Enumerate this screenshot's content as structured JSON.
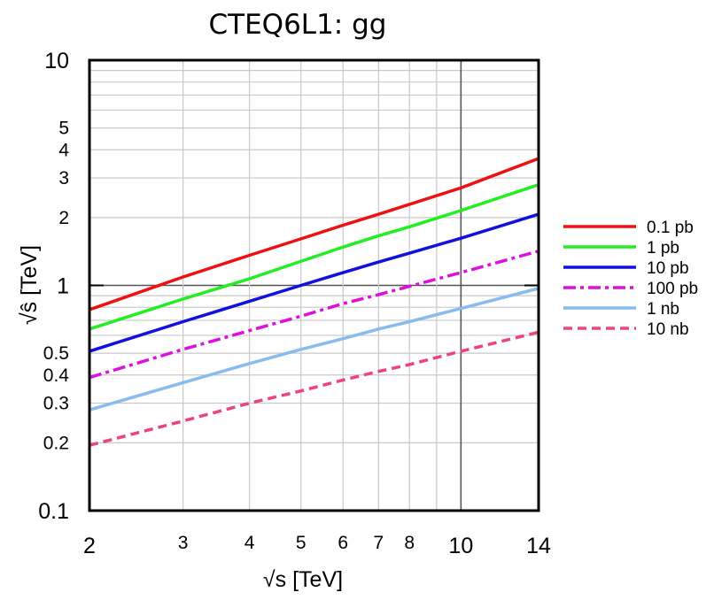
{
  "chart_data": {
    "type": "line",
    "title": "CTEQ6L1: gg",
    "xlabel": "√s  [TeV]",
    "ylabel": "√ŝ [TeV]",
    "x_scale": "log",
    "y_scale": "log",
    "xlim": [
      2,
      14
    ],
    "ylim": [
      0.1,
      10
    ],
    "grid": true,
    "legend_position": "right",
    "x_ticks": [
      {
        "value": 2,
        "label": "2",
        "major": true
      },
      {
        "value": 3,
        "label": "3",
        "major": false
      },
      {
        "value": 4,
        "label": "4",
        "major": false
      },
      {
        "value": 5,
        "label": "5",
        "major": false
      },
      {
        "value": 6,
        "label": "6",
        "major": false
      },
      {
        "value": 7,
        "label": "7",
        "major": false
      },
      {
        "value": 8,
        "label": "8",
        "major": false
      },
      {
        "value": 10,
        "label": "10",
        "major": true
      },
      {
        "value": 14,
        "label": "14",
        "major": true
      }
    ],
    "x_grid": [
      3,
      4,
      5,
      6,
      7,
      8,
      9,
      10
    ],
    "y_ticks": [
      {
        "value": 0.1,
        "label": "0.1",
        "major": true
      },
      {
        "value": 0.2,
        "label": "0.2",
        "major": false
      },
      {
        "value": 0.3,
        "label": "0.3",
        "major": false
      },
      {
        "value": 0.4,
        "label": "0.4",
        "major": false
      },
      {
        "value": 0.5,
        "label": "0.5",
        "major": false
      },
      {
        "value": 1,
        "label": "1",
        "major": true
      },
      {
        "value": 2,
        "label": "2",
        "major": false
      },
      {
        "value": 3,
        "label": "3",
        "major": false
      },
      {
        "value": 4,
        "label": "4",
        "major": false
      },
      {
        "value": 5,
        "label": "5",
        "major": false
      },
      {
        "value": 10,
        "label": "10",
        "major": true
      }
    ],
    "y_grid": [
      0.2,
      0.3,
      0.4,
      0.5,
      0.6,
      0.7,
      0.8,
      0.9,
      1,
      2,
      3,
      4,
      5,
      6,
      7,
      8,
      9
    ],
    "series": [
      {
        "name": "0.1 pb",
        "color": "#ee1111",
        "dash": "solid",
        "x": [
          2,
          3,
          4,
          5,
          6,
          7,
          8,
          10,
          14
        ],
        "y": [
          0.78,
          1.09,
          1.36,
          1.61,
          1.85,
          2.07,
          2.29,
          2.71,
          3.66
        ]
      },
      {
        "name": "1 pb",
        "color": "#22ee22",
        "dash": "solid",
        "x": [
          2,
          3,
          4,
          5,
          6,
          7,
          8,
          10,
          14
        ],
        "y": [
          0.64,
          0.87,
          1.07,
          1.28,
          1.48,
          1.66,
          1.82,
          2.15,
          2.8
        ]
      },
      {
        "name": "10 pb",
        "color": "#1111dd",
        "dash": "solid",
        "x": [
          2,
          3,
          4,
          5,
          6,
          7,
          8,
          10,
          14
        ],
        "y": [
          0.51,
          0.69,
          0.85,
          1.0,
          1.14,
          1.27,
          1.39,
          1.62,
          2.07
        ]
      },
      {
        "name": "100 pb",
        "color": "#dd11dd",
        "dash": "dashdot",
        "x": [
          2,
          3,
          4,
          5,
          6,
          7,
          8,
          10,
          14
        ],
        "y": [
          0.39,
          0.52,
          0.63,
          0.73,
          0.83,
          0.91,
          0.99,
          1.14,
          1.42
        ]
      },
      {
        "name": "1 nb",
        "color": "#88bbee",
        "dash": "solid",
        "x": [
          2,
          3,
          4,
          5,
          6,
          7,
          8,
          10,
          14
        ],
        "y": [
          0.28,
          0.37,
          0.45,
          0.52,
          0.58,
          0.64,
          0.69,
          0.79,
          0.97
        ]
      },
      {
        "name": "10 nb",
        "color": "#ee4477",
        "dash": "dashed",
        "x": [
          2,
          3,
          4,
          5,
          6,
          7,
          8,
          10,
          14
        ],
        "y": [
          0.195,
          0.25,
          0.3,
          0.34,
          0.38,
          0.415,
          0.445,
          0.51,
          0.62
        ]
      }
    ]
  }
}
